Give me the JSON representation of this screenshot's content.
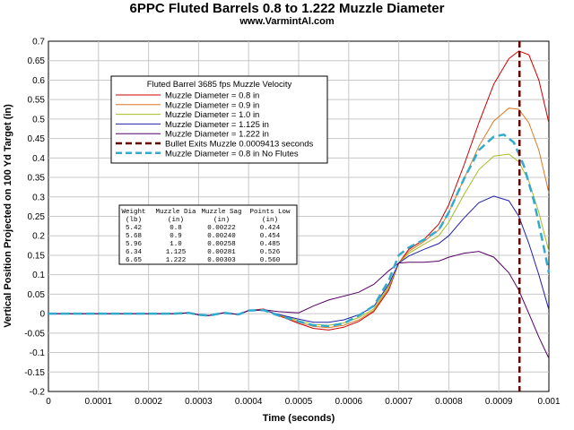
{
  "chart_data": {
    "type": "line",
    "title": "6PPC Fluted Barrels 0.8 to 1.222 Muzzle Diameter",
    "subtitle": "www.VarmintAl.com",
    "xlabel": "Time (seconds)",
    "ylabel": "Vertical Position Projected on 100 Yd Target (in)",
    "xlim": [
      0,
      0.001
    ],
    "ylim": [
      -0.2,
      0.7
    ],
    "xticks": [
      "0",
      "0.0001",
      "0.0002",
      "0.0003",
      "0.0004",
      "0.0005",
      "0.0006",
      "0.0007",
      "0.0008",
      "0.0009",
      "0.001"
    ],
    "yticks": [
      "-0.2",
      "-0.15",
      "-0.1",
      "-0.05",
      "0",
      "0.05",
      "0.1",
      "0.15",
      "0.2",
      "0.25",
      "0.3",
      "0.35",
      "0.4",
      "0.45",
      "0.5",
      "0.55",
      "0.6",
      "0.65",
      "0.7"
    ],
    "grid": true,
    "legend": {
      "title": "Fluted Barrel 3685 fps Muzzle Velocity",
      "placement": "upper-left"
    },
    "series": [
      {
        "name": "Muzzle Diameter = 0.8 in",
        "color": "#cc0000",
        "style": "solid",
        "x": [
          0,
          0.00025,
          0.00028,
          0.0003,
          0.00032,
          0.00035,
          0.00038,
          0.0004,
          0.00043,
          0.00046,
          0.0005,
          0.00053,
          0.00056,
          0.00059,
          0.00062,
          0.00065,
          0.00068,
          0.0007,
          0.00072,
          0.00075,
          0.00078,
          0.0008,
          0.00083,
          0.00086,
          0.00089,
          0.00092,
          0.00094,
          0.00096,
          0.00098,
          0.001
        ],
        "y": [
          0,
          0,
          0.002,
          -0.003,
          -0.005,
          0.002,
          -0.002,
          0.008,
          0.012,
          -0.005,
          -0.025,
          -0.038,
          -0.042,
          -0.035,
          -0.02,
          0.005,
          0.06,
          0.13,
          0.165,
          0.19,
          0.23,
          0.28,
          0.38,
          0.49,
          0.59,
          0.655,
          0.675,
          0.665,
          0.6,
          0.49
        ]
      },
      {
        "name": "Muzzle Diameter = 0.9 in",
        "color": "#dd7722",
        "style": "solid",
        "x": [
          0,
          0.00025,
          0.00028,
          0.0003,
          0.00032,
          0.00035,
          0.00038,
          0.0004,
          0.00043,
          0.00046,
          0.0005,
          0.00053,
          0.00056,
          0.00059,
          0.00062,
          0.00065,
          0.00068,
          0.0007,
          0.00072,
          0.00075,
          0.00078,
          0.0008,
          0.00083,
          0.00086,
          0.00089,
          0.00092,
          0.00094,
          0.00096,
          0.00098,
          0.001
        ],
        "y": [
          0,
          0,
          0.002,
          -0.003,
          -0.005,
          0.002,
          -0.002,
          0.008,
          0.011,
          -0.004,
          -0.022,
          -0.033,
          -0.036,
          -0.03,
          -0.016,
          0.008,
          0.065,
          0.13,
          0.16,
          0.185,
          0.215,
          0.26,
          0.345,
          0.43,
          0.495,
          0.528,
          0.525,
          0.49,
          0.42,
          0.31
        ]
      },
      {
        "name": "Muzzle Diameter = 1.0 in",
        "color": "#aabb22",
        "style": "solid",
        "x": [
          0,
          0.00025,
          0.00028,
          0.0003,
          0.00032,
          0.00035,
          0.00038,
          0.0004,
          0.00043,
          0.00046,
          0.0005,
          0.00053,
          0.00056,
          0.00059,
          0.00062,
          0.00065,
          0.00068,
          0.0007,
          0.00072,
          0.00075,
          0.00078,
          0.0008,
          0.00083,
          0.00086,
          0.00089,
          0.00092,
          0.00094,
          0.00096,
          0.00098,
          0.001
        ],
        "y": [
          0,
          0,
          0.002,
          -0.003,
          -0.005,
          0.002,
          -0.002,
          0.008,
          0.01,
          -0.003,
          -0.018,
          -0.028,
          -0.03,
          -0.024,
          -0.01,
          0.012,
          0.07,
          0.13,
          0.155,
          0.178,
          0.2,
          0.235,
          0.305,
          0.37,
          0.405,
          0.41,
          0.39,
          0.34,
          0.26,
          0.16
        ]
      },
      {
        "name": "Muzzle Diameter = 1.125 in",
        "color": "#2222aa",
        "style": "solid",
        "x": [
          0,
          0.00025,
          0.00028,
          0.0003,
          0.00032,
          0.00035,
          0.00038,
          0.0004,
          0.00043,
          0.00046,
          0.0005,
          0.00053,
          0.00056,
          0.00059,
          0.00062,
          0.00065,
          0.00068,
          0.0007,
          0.00072,
          0.00075,
          0.00078,
          0.0008,
          0.00083,
          0.00086,
          0.00089,
          0.00092,
          0.00094,
          0.00096,
          0.00098,
          0.001
        ],
        "y": [
          0,
          0,
          0.002,
          -0.003,
          -0.005,
          0.002,
          -0.002,
          0.008,
          0.009,
          -0.002,
          -0.014,
          -0.022,
          -0.022,
          -0.016,
          -0.003,
          0.018,
          0.075,
          0.13,
          0.148,
          0.165,
          0.18,
          0.2,
          0.245,
          0.285,
          0.302,
          0.29,
          0.25,
          0.18,
          0.1,
          0.01
        ]
      },
      {
        "name": "Muzzle Diameter = 1.222 in",
        "color": "#550066",
        "style": "solid",
        "x": [
          0,
          0.00025,
          0.00028,
          0.0003,
          0.00032,
          0.00035,
          0.00038,
          0.0004,
          0.00043,
          0.00046,
          0.0005,
          0.00053,
          0.00056,
          0.00059,
          0.00062,
          0.00065,
          0.00068,
          0.0007,
          0.00072,
          0.00075,
          0.00078,
          0.0008,
          0.00083,
          0.00086,
          0.00089,
          0.00092,
          0.00094,
          0.00096,
          0.00098,
          0.001
        ],
        "y": [
          0,
          0,
          0.002,
          -0.003,
          -0.005,
          0.002,
          -0.002,
          0.008,
          0.01,
          0.005,
          0.002,
          0.02,
          0.035,
          0.045,
          0.055,
          0.075,
          0.11,
          0.13,
          0.132,
          0.132,
          0.135,
          0.145,
          0.155,
          0.16,
          0.145,
          0.105,
          0.06,
          0.0,
          -0.06,
          -0.115
        ]
      },
      {
        "name": "Muzzle Diameter = 0.8 in No Flutes",
        "color": "#33aacc",
        "style": "dashed",
        "x": [
          0,
          0.00025,
          0.00028,
          0.0003,
          0.00032,
          0.00035,
          0.00038,
          0.0004,
          0.00043,
          0.00046,
          0.0005,
          0.00053,
          0.00056,
          0.00059,
          0.00062,
          0.00065,
          0.00068,
          0.0007,
          0.00072,
          0.00075,
          0.00078,
          0.0008,
          0.00083,
          0.00086,
          0.00089,
          0.00091,
          0.00093,
          0.00095,
          0.00097,
          0.00099,
          0.001
        ],
        "y": [
          0,
          0,
          0.002,
          -0.003,
          -0.005,
          0.002,
          -0.002,
          0.008,
          0.009,
          -0.005,
          -0.02,
          -0.03,
          -0.032,
          -0.025,
          -0.005,
          0.02,
          0.085,
          0.15,
          0.17,
          0.19,
          0.215,
          0.26,
          0.345,
          0.42,
          0.455,
          0.46,
          0.44,
          0.38,
          0.29,
          0.17,
          0.105
        ]
      }
    ],
    "muzzle_exit": {
      "name": "Bullet Exits Muzzle 0.0009413 seconds",
      "x": 0.0009413,
      "color": "#660000",
      "style": "dashed"
    },
    "table": {
      "headers": [
        [
          "Weight",
          "Muzzle Dia",
          "Muzzle Sag",
          "Points Low"
        ],
        [
          "(lb)",
          "(in)",
          "(in)",
          "(in)"
        ]
      ],
      "rows": [
        [
          "5.42",
          "0.8",
          "0.00222",
          "0.424"
        ],
        [
          "5.68",
          "0.9",
          "0.00240",
          "0.454"
        ],
        [
          "5.96",
          "1.0",
          "0.00258",
          "0.485"
        ],
        [
          "6.34",
          "1.125",
          "0.00281",
          "0.526"
        ],
        [
          "6.65",
          "1.222",
          "0.00303",
          "0.560"
        ]
      ]
    }
  }
}
